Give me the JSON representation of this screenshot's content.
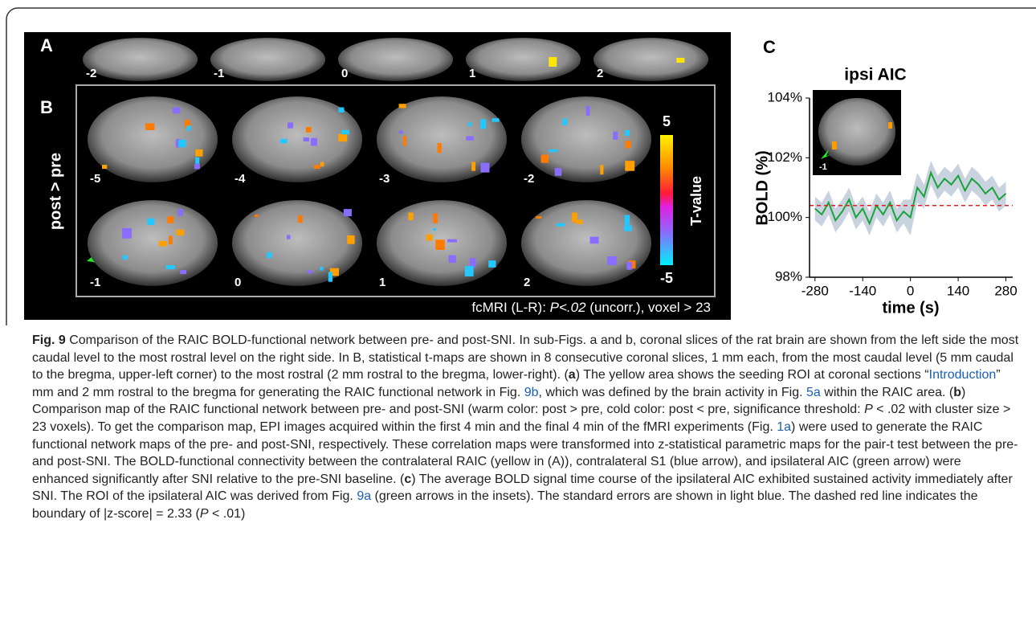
{
  "figure": {
    "panel_a": {
      "label": "A",
      "slices": [
        "-2",
        "-1",
        "0",
        "1",
        "2"
      ]
    },
    "panel_b": {
      "label": "B",
      "side_label": "post > pre",
      "row1": [
        "-5",
        "-4",
        "-3",
        "-2"
      ],
      "row2": [
        "-1",
        "0",
        "1",
        "2"
      ],
      "colorbar_max": "5",
      "colorbar_min": "-5",
      "colorbar_title": "T-value",
      "footnote": [
        "fcMRI (L-R): ",
        "P<.02",
        " (uncorr.), voxel > 23"
      ]
    },
    "panel_c": {
      "label": "C",
      "inset_label": "-1"
    }
  },
  "chart_data": {
    "type": "line",
    "title": "ipsi AIC",
    "y_label": "BOLD (%)",
    "x_label": "time (s)",
    "x": [
      -280,
      -260,
      -240,
      -220,
      -200,
      -180,
      -160,
      -140,
      -120,
      -100,
      -80,
      -60,
      -40,
      -20,
      0,
      20,
      40,
      60,
      80,
      100,
      120,
      140,
      160,
      180,
      200,
      220,
      240,
      260,
      280
    ],
    "series": [
      {
        "name": "ipsi AIC",
        "color": "#1aa33a",
        "values": [
          100.3,
          100.1,
          100.5,
          99.9,
          100.2,
          100.6,
          100.0,
          100.3,
          99.8,
          100.4,
          100.1,
          100.5,
          99.9,
          100.2,
          100.0,
          101.0,
          100.7,
          101.5,
          101.0,
          101.3,
          101.1,
          101.4,
          100.9,
          101.3,
          101.1,
          100.8,
          101.0,
          100.6,
          100.8
        ],
        "errors": [
          0.4,
          0.4,
          0.4,
          0.4,
          0.4,
          0.4,
          0.4,
          0.4,
          0.4,
          0.4,
          0.4,
          0.4,
          0.4,
          0.4,
          0.6,
          0.5,
          0.4,
          0.4,
          0.4,
          0.4,
          0.4,
          0.4,
          0.4,
          0.4,
          0.4,
          0.4,
          0.4,
          0.4,
          0.4
        ],
        "error_color": "#c9d3e0"
      }
    ],
    "threshold": 100.4,
    "threshold_color": "#e02020",
    "xlim": [
      -296,
      300
    ],
    "ylim": [
      98,
      104
    ],
    "xticks": [
      -280,
      -140,
      0,
      140,
      280
    ],
    "yticks": [
      {
        "value": 98,
        "label": "98%"
      },
      {
        "value": 100,
        "label": "100%"
      },
      {
        "value": 102,
        "label": "102%"
      },
      {
        "value": 104,
        "label": "104%"
      }
    ]
  },
  "caption": [
    {
      "text": "Fig. 9",
      "style": "bold"
    },
    {
      "text": " Comparison of the RAIC BOLD-functional network between pre- and post-SNI. In sub-Figs. a and b, coronal slices of the rat brain are shown from the left side the most caudal level to the most rostral level on the right side. In B, statistical t-maps are shown in 8 consecutive coronal slices, 1 mm each, from the most caudal level (5 mm caudal to the bregma, upper-left corner) to the most rostral (2 mm rostral to the bregma, lower-right). (",
      "style": "plain"
    },
    {
      "text": "a",
      "style": "bold"
    },
    {
      "text": ") The yellow area shows the seeding ROI at coronal sections “",
      "style": "plain"
    },
    {
      "text": "Introduction",
      "style": "link"
    },
    {
      "text": "” mm and 2 mm rostral to the bregma for generating the RAIC functional network in Fig. ",
      "style": "plain"
    },
    {
      "text": "9b",
      "style": "link"
    },
    {
      "text": ", which was defined by the brain activity in Fig. ",
      "style": "plain"
    },
    {
      "text": "5a",
      "style": "link"
    },
    {
      "text": " within the RAIC area. (",
      "style": "plain"
    },
    {
      "text": "b",
      "style": "bold"
    },
    {
      "text": ") Comparison map of the RAIC functional network between pre- and post-SNI (warm color: post > pre, cold color: post < pre, significance threshold: ",
      "style": "plain"
    },
    {
      "text": "P",
      "style": "italic"
    },
    {
      "text": " < .02 with cluster size > 23 voxels). To get the comparison map, EPI images acquired within the first 4 min and the final 4 min of the fMRI experiments (Fig. ",
      "style": "plain"
    },
    {
      "text": "1a",
      "style": "link"
    },
    {
      "text": ") were used to generate the RAIC functional network maps of the pre- and post-SNI, respectively. These correlation maps were transformed into z-statistical parametric maps for the pair-t test between the pre- and post-SNI. The BOLD-functional connectivity between the contralateral RAIC (yellow in (A)), contralateral S1 (blue arrow), and ipsilateral AIC (green arrow) were enhanced significantly after SNI relative to the pre-SNI baseline. (",
      "style": "plain"
    },
    {
      "text": "c",
      "style": "bold"
    },
    {
      "text": ") The average BOLD signal time course of the ipsilateral AIC exhibited sustained activity immediately after SNI. The ROI of the ipsilateral AIC was derived from Fig. ",
      "style": "plain"
    },
    {
      "text": "9a",
      "style": "link"
    },
    {
      "text": " (green arrows in the insets). The standard errors are shown in light blue. The dashed red line indicates the boundary of |z-score| = 2.33 (",
      "style": "plain"
    },
    {
      "text": "P",
      "style": "italic"
    },
    {
      "text": " < .01)",
      "style": "plain"
    }
  ]
}
